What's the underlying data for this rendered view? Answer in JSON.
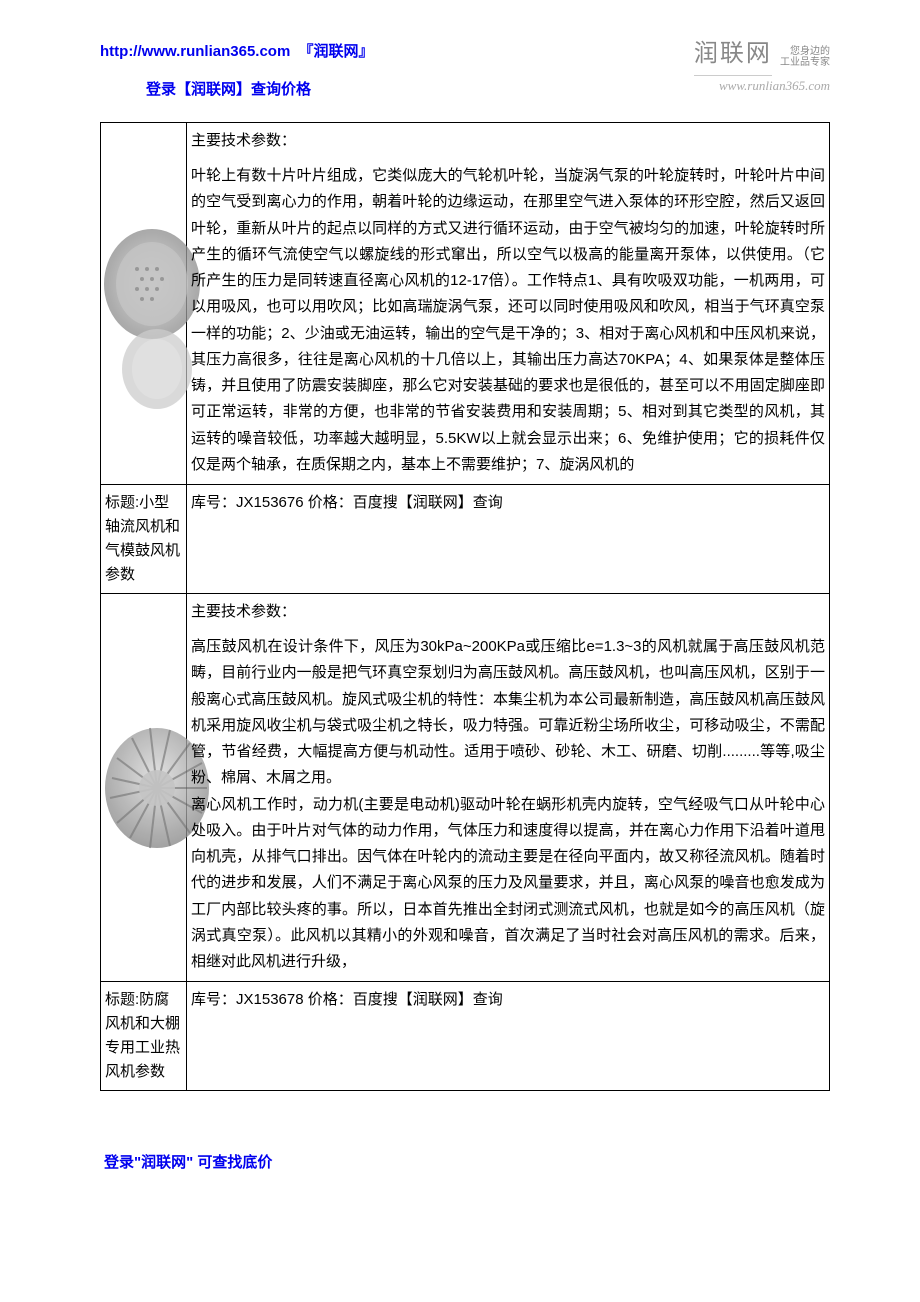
{
  "header": {
    "site_url": "http://www.runlian365.com",
    "site_name": "『润联网』",
    "login_text": "登录【润联网】查询价格",
    "logo_main": "润联网",
    "logo_sub_line1": "您身边的",
    "logo_sub_line2": "工业品专家",
    "logo_url": "www.runlian365.com"
  },
  "rows": [
    {
      "left": "",
      "section_title": "主要技术参数：",
      "body": "叶轮上有数十片叶片组成，它类似庞大的气轮机叶轮，当旋涡气泵的叶轮旋转时，叶轮叶片中间的空气受到离心力的作用，朝着叶轮的边缘运动，在那里空气进入泵体的环形空腔，然后又返回叶轮，重新从叶片的起点以同样的方式又进行循环运动，由于空气被均匀的加速，叶轮旋转时所产生的循环气流使空气以螺旋线的形式窜出，所以空气以极高的能量离开泵体，以供使用。（它所产生的压力是同转速直径离心风机的12-17倍）。工作特点1、具有吹吸双功能，一机两用，可以用吸风，也可以用吹风；比如高瑞旋涡气泵，还可以同时使用吸风和吹风，相当于气环真空泵一样的功能；2、少油或无油运转，输出的空气是干净的；3、相对于离心风机和中压风机来说，其压力高很多，往往是离心风机的十几倍以上，其输出压力高达70KPA；4、如果泵体是整体压铸，并且使用了防震安装脚座，那么它对安装基础的要求也是很低的，甚至可以不用固定脚座即可正常运转，非常的方便，也非常的节省安装费用和安装周期；5、相对到其它类型的风机，其运转的噪音较低，功率越大越明显，5.5KW以上就会显示出来；6、免维护使用；它的损耗件仅仅是两个轴承，在质保期之内，基本上不需要维护；7、旋涡风机的",
      "has_image": true,
      "image_type": "fan1"
    },
    {
      "left": "标题:小型轴流风机和气模鼓风机参数",
      "right": "库号：JX153676 价格：百度搜【润联网】查询"
    },
    {
      "left": "",
      "section_title": "主要技术参数：",
      "body": "高压鼓风机在设计条件下，风压为30kPa~200KPa或压缩比e=1.3~3的风机就属于高压鼓风机范畴，目前行业内一般是把气环真空泵划归为高压鼓风机。高压鼓风机，也叫高压风机，区别于一般离心式高压鼓风机。旋风式吸尘机的特性：本集尘机为本公司最新制造，高压鼓风机高压鼓风机采用旋风收尘机与袋式吸尘机之特长，吸力特强。可靠近粉尘场所收尘，可移动吸尘，不需配管，节省经费，大幅提高方便与机动性。适用于喷砂、砂轮、木工、研磨、切削.........等等,吸尘粉、棉屑、木屑之用。\n离心风机工作时，动力机(主要是电动机)驱动叶轮在蜗形机壳内旋转，空气经吸气口从叶轮中心处吸入。由于叶片对气体的动力作用，气体压力和速度得以提高，并在离心力作用下沿着叶道甩向机壳，从排气口排出。因气体在叶轮内的流动主要是在径向平面内，故又称径流风机。随着时代的进步和发展，人们不满足于离心风泵的压力及风量要求，并且，离心风泵的噪音也愈发成为工厂内部比较头疼的事。所以，日本首先推出全封闭式测流式风机，也就是如今的高压风机（旋涡式真空泵）。此风机以其精小的外观和噪音，首次满足了当时社会对高压风机的需求。后来，相继对此风机进行升级，",
      "has_image": true,
      "image_type": "fan2"
    },
    {
      "left": "标题:防腐风机和大棚专用工业热风机参数",
      "right": "库号：JX153678 价格：百度搜【润联网】查询"
    }
  ],
  "footer": {
    "text": "登录\"润联网\" 可查找底价"
  },
  "colors": {
    "link_color": "#0000ee",
    "border_color": "#000000",
    "logo_gray": "#888888",
    "fan_gray": "#b0b0b0"
  }
}
